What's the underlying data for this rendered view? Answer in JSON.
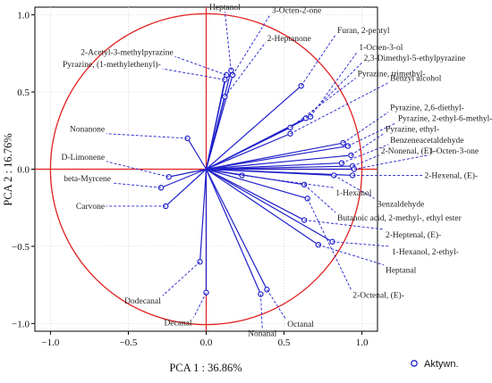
{
  "chart_data": {
    "type": "scatter",
    "title": "",
    "xlabel": "PCA 1 : 36.86%",
    "ylabel": "PCA 2 : 16.76%",
    "xlim": [
      -1.1,
      1.1
    ],
    "ylim": [
      -1.05,
      1.05
    ],
    "xticks": [
      "−1.0",
      "−0.5",
      "0.0",
      "0.5",
      "1.0"
    ],
    "yticks": [
      "−1.0",
      "−0.5",
      "0.0",
      "0.5",
      "1.0"
    ],
    "grid": true,
    "legend": {
      "position": "bottom-right",
      "entries": [
        "Aktywn."
      ]
    },
    "unit_circle": true,
    "series": [
      {
        "name": "Aktywn.",
        "points": [
          {
            "label": "Heptanol",
            "x": 0.16,
            "y": 0.64,
            "lx": 0.12,
            "ly": 1.02
          },
          {
            "label": "3-Octen-2-one",
            "x": 0.17,
            "y": 0.61,
            "lx": 0.41,
            "ly": 1.0
          },
          {
            "label": "2-Heptanone",
            "x": 0.12,
            "y": 0.47,
            "lx": 0.38,
            "ly": 0.82
          },
          {
            "label": "2-Acetyl-3-methylpyrazine",
            "x": 0.13,
            "y": 0.61,
            "lx": -0.2,
            "ly": 0.73
          },
          {
            "label": "Pyrazine, (1-methylethenyl)-",
            "x": 0.12,
            "y": 0.58,
            "lx": -0.28,
            "ly": 0.65
          },
          {
            "label": "Furan, 2-pentyl",
            "x": 0.61,
            "y": 0.54,
            "lx": 0.83,
            "ly": 0.87
          },
          {
            "label": "1-Octen-3-ol",
            "x": 0.67,
            "y": 0.34,
            "lx": 0.97,
            "ly": 0.76
          },
          {
            "label": "2,3-Dimethyl-5-ethylpyrazine",
            "x": 0.64,
            "y": 0.33,
            "lx": 1.0,
            "ly": 0.69
          },
          {
            "label": "Pyrazine, trimethyl-",
            "x": 0.54,
            "y": 0.27,
            "lx": 0.96,
            "ly": 0.59
          },
          {
            "label": "Benzyl alcohol",
            "x": 0.54,
            "y": 0.23,
            "lx": 1.17,
            "ly": 0.56
          },
          {
            "label": "Pyrazine, 2,6-diethyl-",
            "x": 0.88,
            "y": 0.17,
            "lx": 1.17,
            "ly": 0.37
          },
          {
            "label": "Pyrazine, 2-ethyl-6-methyl-",
            "x": 0.91,
            "y": 0.15,
            "lx": 1.22,
            "ly": 0.3
          },
          {
            "label": "Pyrazine, ethyl-",
            "x": 0.93,
            "y": 0.09,
            "lx": 1.14,
            "ly": 0.23
          },
          {
            "label": "Benzeneacetaldehyde",
            "x": 0.87,
            "y": 0.04,
            "lx": 1.17,
            "ly": 0.16
          },
          {
            "label": "2-Nonenal, (E)-",
            "x": 0.94,
            "y": 0.02,
            "lx": 1.11,
            "ly": 0.09
          },
          {
            "label": "1-Octen-3-one",
            "x": 0.95,
            "y": 0.0,
            "lx": 1.42,
            "ly": 0.09
          },
          {
            "label": "2-Hexenal, (E)-",
            "x": 0.94,
            "y": -0.04,
            "lx": 1.39,
            "ly": -0.04
          },
          {
            "label": "1-Hexanol",
            "x": 0.23,
            "y": -0.04,
            "lx": 0.82,
            "ly": -0.12
          },
          {
            "label": "Benzaldehyde",
            "x": 0.82,
            "y": -0.04,
            "lx": 1.08,
            "ly": -0.19
          },
          {
            "label": "Butanoic acid, 2-methyl-, ethyl ester",
            "x": 0.63,
            "y": -0.1,
            "lx": 0.83,
            "ly": -0.28
          },
          {
            "label": "2-Heptenal, (E)-",
            "x": 0.63,
            "y": -0.33,
            "lx": 1.14,
            "ly": -0.39
          },
          {
            "label": "1-Hexanol, 2-ethyl-",
            "x": 0.81,
            "y": -0.47,
            "lx": 1.18,
            "ly": -0.5
          },
          {
            "label": "Heptanal",
            "x": 0.72,
            "y": -0.49,
            "lx": 1.14,
            "ly": -0.62
          },
          {
            "label": "2-Octenal, (E)-",
            "x": 0.65,
            "y": -0.19,
            "lx": 0.93,
            "ly": -0.78
          },
          {
            "label": "Octanal",
            "x": 0.39,
            "y": -0.78,
            "lx": 0.51,
            "ly": -0.97
          },
          {
            "label": "Nonanal",
            "x": 0.35,
            "y": -0.81,
            "lx": 0.36,
            "ly": -1.03
          },
          {
            "label": "Decanal",
            "x": 0.0,
            "y": -0.8,
            "lx": -0.08,
            "ly": -0.96
          },
          {
            "label": "Dodecanal",
            "x": -0.04,
            "y": -0.6,
            "lx": -0.28,
            "ly": -0.82
          },
          {
            "label": "Nonanone",
            "x": -0.12,
            "y": 0.2,
            "lx": -0.64,
            "ly": 0.23
          },
          {
            "label": "D-Limonene",
            "x": -0.24,
            "y": -0.05,
            "lx": -0.64,
            "ly": 0.05
          },
          {
            "label": "beta-Myrcene",
            "x": -0.29,
            "y": -0.12,
            "lx": -0.6,
            "ly": -0.09
          },
          {
            "label": "Carvone",
            "x": -0.26,
            "y": -0.24,
            "lx": -0.64,
            "ly": -0.24
          }
        ]
      }
    ]
  }
}
